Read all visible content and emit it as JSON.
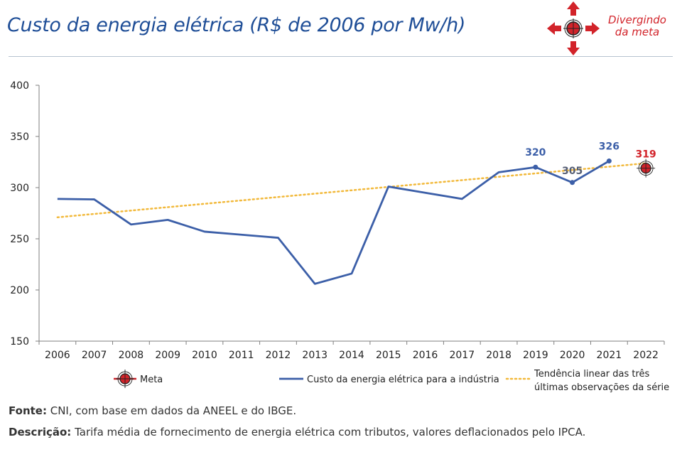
{
  "header": {
    "title": "Custo da energia elétrica (R$ de 2006 por Mw/h)",
    "badge_line1": "Divergindo",
    "badge_line2": "da meta",
    "badge_icon": "diverging-arrows-target-icon",
    "accent_color": "#d2232a",
    "title_color": "#1f4e97"
  },
  "chart_data": {
    "type": "line",
    "categories": [
      "2006",
      "2007",
      "2008",
      "2009",
      "2010",
      "2011",
      "2012",
      "2013",
      "2014",
      "2015",
      "2016",
      "2017",
      "2018",
      "2019",
      "2020",
      "2021",
      "2022"
    ],
    "series": [
      {
        "name": "Custo da energia elétrica para a indústria",
        "color": "#3c5fa8",
        "values": [
          289,
          288.5,
          264,
          268.5,
          257,
          254,
          251,
          206,
          216,
          301,
          295,
          289,
          315,
          320,
          305,
          326,
          null
        ]
      },
      {
        "name": "Tendência linear das três últimas observações da série",
        "color": "#f2b93b",
        "style": "dotted",
        "values": [
          271,
          274.3,
          277.6,
          280.9,
          284.2,
          287.5,
          290.8,
          294.1,
          297.4,
          300.7,
          304,
          307.3,
          310.6,
          313.9,
          317.2,
          320.5,
          323.8
        ]
      }
    ],
    "meta": {
      "name": "Meta",
      "category": "2022",
      "value": 319,
      "label": "319",
      "color": "#d2232a"
    },
    "data_labels": [
      {
        "category": "2019",
        "value": 320,
        "label": "320"
      },
      {
        "category": "2020",
        "value": 305,
        "label": "305"
      },
      {
        "category": "2021",
        "value": 326,
        "label": "326"
      }
    ],
    "yticks": [
      150,
      200,
      250,
      300,
      350,
      400
    ],
    "ylim": [
      150,
      400
    ],
    "grid": false,
    "legend_position": "bottom",
    "legend": [
      {
        "type": "marker",
        "label": "Meta"
      },
      {
        "type": "line",
        "label": "Custo da energia elétrica para a indústria"
      },
      {
        "type": "dotted",
        "label_line1": "Tendência linear das três",
        "label_line2": "últimas observações da série"
      }
    ]
  },
  "footer": {
    "source_label": "Fonte:",
    "source_text": " CNI, com base em dados da ANEEL e do IBGE.",
    "description_label": "Descrição:",
    "description_text": " Tarifa média de fornecimento de energia elétrica com tributos, valores deflacionados pelo IPCA."
  }
}
